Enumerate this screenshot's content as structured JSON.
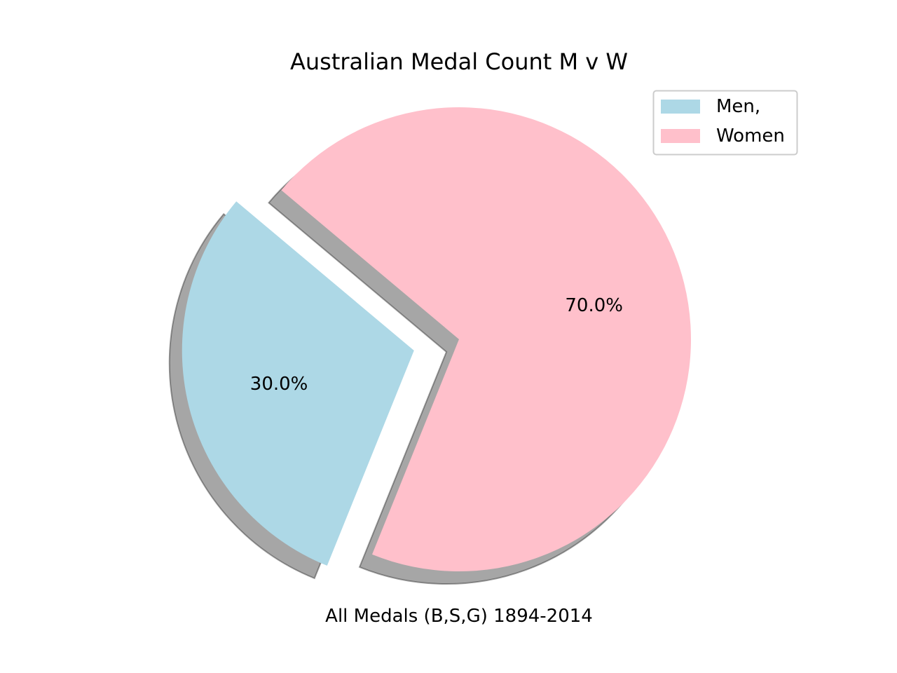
{
  "chart_data": {
    "type": "pie",
    "title": "Australian Medal Count M v W",
    "xlabel": "All Medals (B,S,G) 1894-2014",
    "categories": [
      "Men,",
      "Women"
    ],
    "values": [
      30.0,
      70.0
    ],
    "value_labels": [
      "30.0%",
      "70.0%"
    ],
    "colors": [
      "#add8e6",
      "#ffc0cb"
    ],
    "explode": [
      0.2,
      0.0
    ],
    "start_angle_deg": 140,
    "shadow": true,
    "legend_position": "top-right"
  }
}
